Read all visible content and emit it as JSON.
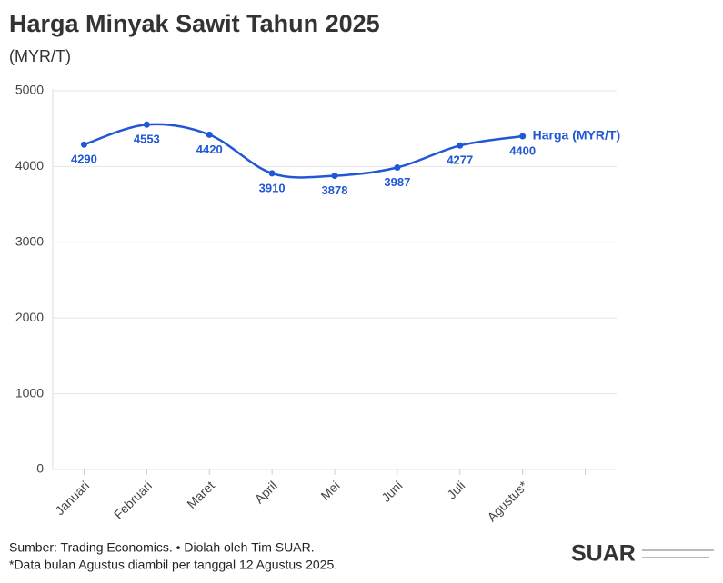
{
  "chart_data": {
    "type": "line",
    "title": "Harga Minyak Sawit Tahun 2025",
    "subtitle": "(MYR/T)",
    "categories": [
      "Januari",
      "Februari",
      "Maret",
      "April",
      "Mei",
      "Juni",
      "Juli",
      "Agustus*",
      null
    ],
    "series": [
      {
        "name": "Harga (MYR/T)",
        "color": "#1f57d6",
        "values": [
          4290,
          4553,
          4420,
          3910,
          3878,
          3987,
          4277,
          4400,
          null
        ]
      }
    ],
    "ylim": [
      0,
      5000
    ],
    "yticks": [
      0,
      1000,
      2000,
      3000,
      4000,
      5000
    ],
    "grid": true,
    "source": "Sumber: Trading Economics. • Diolah oleh Tim SUAR.",
    "footnote": "*Data bulan Agustus diambil per tanggal 12 Agustus 2025.",
    "logo": "SUAR"
  }
}
